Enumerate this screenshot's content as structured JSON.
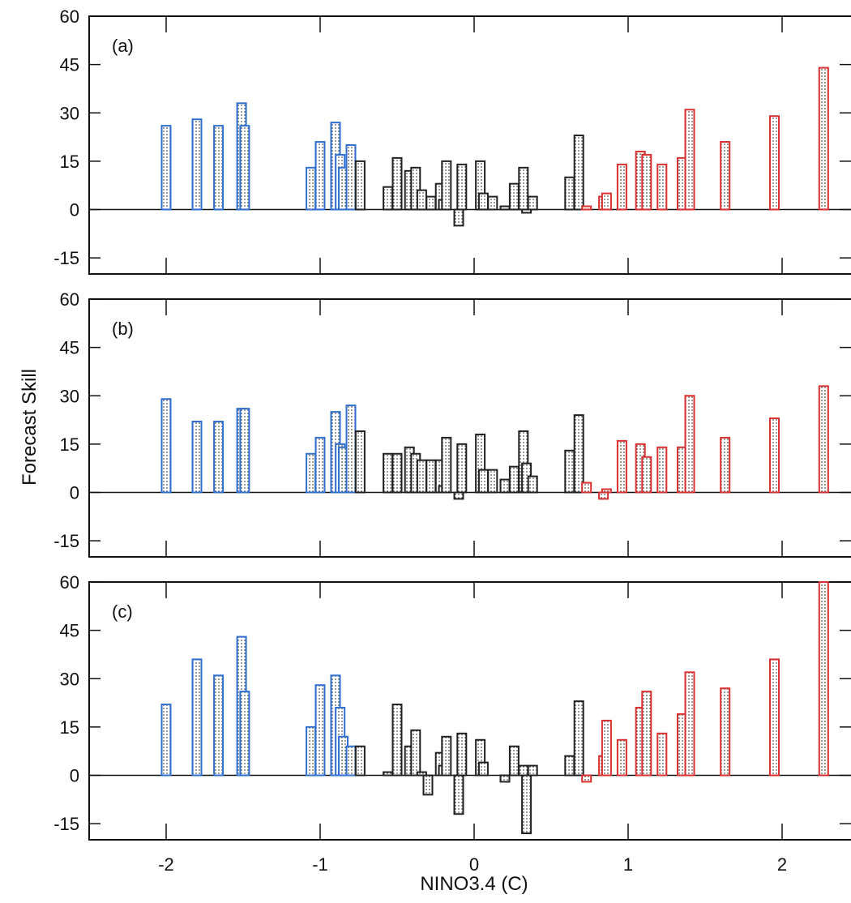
{
  "colors": {
    "la_nina": "#2f6fd0",
    "la_nina_fill": "#cfe0f6",
    "neutral": "#222222",
    "neutral_fill": "#d4d4d4",
    "el_nino": "#d93030",
    "el_nino_fill": "#f7d2d2"
  },
  "chart_data": {
    "type": "bar",
    "xlabel": "NINO3.4 (C)",
    "ylabel": "Forecast Skill",
    "xlim": [
      -2.5,
      2.3
    ],
    "ylim": [
      -20,
      60
    ],
    "xticks": [
      -2,
      -1,
      0,
      1,
      2
    ],
    "yticks": [
      -15,
      0,
      15,
      30,
      45,
      60
    ],
    "categories": [
      "la_nina",
      "neutral",
      "el_nino"
    ],
    "panels": [
      {
        "label": "(a)",
        "bars": [
          {
            "x": -2.0,
            "y": 26,
            "cat": "la_nina"
          },
          {
            "x": -1.8,
            "y": 28,
            "cat": "la_nina"
          },
          {
            "x": -1.66,
            "y": 26,
            "cat": "la_nina"
          },
          {
            "x": -1.51,
            "y": 33,
            "cat": "la_nina"
          },
          {
            "x": -1.49,
            "y": 26,
            "cat": "la_nina"
          },
          {
            "x": -1.06,
            "y": 13,
            "cat": "la_nina"
          },
          {
            "x": -1.0,
            "y": 21,
            "cat": "la_nina"
          },
          {
            "x": -0.9,
            "y": 27,
            "cat": "la_nina"
          },
          {
            "x": -0.87,
            "y": 17,
            "cat": "la_nina"
          },
          {
            "x": -0.85,
            "y": 13,
            "cat": "la_nina"
          },
          {
            "x": -0.8,
            "y": 20,
            "cat": "la_nina"
          },
          {
            "x": -0.74,
            "y": 15,
            "cat": "neutral"
          },
          {
            "x": -0.56,
            "y": 7,
            "cat": "neutral"
          },
          {
            "x": -0.5,
            "y": 16,
            "cat": "neutral"
          },
          {
            "x": -0.42,
            "y": 12,
            "cat": "neutral"
          },
          {
            "x": -0.38,
            "y": 13,
            "cat": "neutral"
          },
          {
            "x": -0.34,
            "y": 6,
            "cat": "neutral"
          },
          {
            "x": -0.28,
            "y": 4,
            "cat": "neutral"
          },
          {
            "x": -0.22,
            "y": 8,
            "cat": "neutral"
          },
          {
            "x": -0.2,
            "y": 3,
            "cat": "neutral"
          },
          {
            "x": -0.18,
            "y": 15,
            "cat": "neutral"
          },
          {
            "x": -0.1,
            "y": -5,
            "cat": "neutral"
          },
          {
            "x": -0.08,
            "y": 14,
            "cat": "neutral"
          },
          {
            "x": 0.04,
            "y": 15,
            "cat": "neutral"
          },
          {
            "x": 0.06,
            "y": 5,
            "cat": "neutral"
          },
          {
            "x": 0.12,
            "y": 4,
            "cat": "neutral"
          },
          {
            "x": 0.2,
            "y": 1,
            "cat": "neutral"
          },
          {
            "x": 0.26,
            "y": 8,
            "cat": "neutral"
          },
          {
            "x": 0.32,
            "y": 13,
            "cat": "neutral"
          },
          {
            "x": 0.34,
            "y": -1,
            "cat": "neutral"
          },
          {
            "x": 0.38,
            "y": 4,
            "cat": "neutral"
          },
          {
            "x": 0.62,
            "y": 10,
            "cat": "neutral"
          },
          {
            "x": 0.68,
            "y": 23,
            "cat": "neutral"
          },
          {
            "x": 0.73,
            "y": 1,
            "cat": "el_nino"
          },
          {
            "x": 0.84,
            "y": 4,
            "cat": "el_nino"
          },
          {
            "x": 0.86,
            "y": 5,
            "cat": "el_nino"
          },
          {
            "x": 0.96,
            "y": 14,
            "cat": "el_nino"
          },
          {
            "x": 1.08,
            "y": 18,
            "cat": "el_nino"
          },
          {
            "x": 1.12,
            "y": 17,
            "cat": "el_nino"
          },
          {
            "x": 1.22,
            "y": 14,
            "cat": "el_nino"
          },
          {
            "x": 1.35,
            "y": 16,
            "cat": "el_nino"
          },
          {
            "x": 1.4,
            "y": 31,
            "cat": "el_nino"
          },
          {
            "x": 1.63,
            "y": 21,
            "cat": "el_nino"
          },
          {
            "x": 1.95,
            "y": 29,
            "cat": "el_nino"
          },
          {
            "x": 2.27,
            "y": 44,
            "cat": "el_nino"
          }
        ]
      },
      {
        "label": "(b)",
        "bars": [
          {
            "x": -2.0,
            "y": 29,
            "cat": "la_nina"
          },
          {
            "x": -1.8,
            "y": 22,
            "cat": "la_nina"
          },
          {
            "x": -1.66,
            "y": 22,
            "cat": "la_nina"
          },
          {
            "x": -1.51,
            "y": 26,
            "cat": "la_nina"
          },
          {
            "x": -1.49,
            "y": 26,
            "cat": "la_nina"
          },
          {
            "x": -1.06,
            "y": 12,
            "cat": "la_nina"
          },
          {
            "x": -1.0,
            "y": 17,
            "cat": "la_nina"
          },
          {
            "x": -0.9,
            "y": 25,
            "cat": "la_nina"
          },
          {
            "x": -0.87,
            "y": 15,
            "cat": "la_nina"
          },
          {
            "x": -0.85,
            "y": 14,
            "cat": "la_nina"
          },
          {
            "x": -0.8,
            "y": 27,
            "cat": "la_nina"
          },
          {
            "x": -0.74,
            "y": 19,
            "cat": "neutral"
          },
          {
            "x": -0.56,
            "y": 12,
            "cat": "neutral"
          },
          {
            "x": -0.5,
            "y": 12,
            "cat": "neutral"
          },
          {
            "x": -0.42,
            "y": 14,
            "cat": "neutral"
          },
          {
            "x": -0.38,
            "y": 12,
            "cat": "neutral"
          },
          {
            "x": -0.34,
            "y": 10,
            "cat": "neutral"
          },
          {
            "x": -0.28,
            "y": 10,
            "cat": "neutral"
          },
          {
            "x": -0.22,
            "y": 10,
            "cat": "neutral"
          },
          {
            "x": -0.2,
            "y": 2,
            "cat": "neutral"
          },
          {
            "x": -0.18,
            "y": 17,
            "cat": "neutral"
          },
          {
            "x": -0.1,
            "y": -2,
            "cat": "neutral"
          },
          {
            "x": -0.08,
            "y": 15,
            "cat": "neutral"
          },
          {
            "x": 0.04,
            "y": 18,
            "cat": "neutral"
          },
          {
            "x": 0.06,
            "y": 7,
            "cat": "neutral"
          },
          {
            "x": 0.12,
            "y": 7,
            "cat": "neutral"
          },
          {
            "x": 0.2,
            "y": 4,
            "cat": "neutral"
          },
          {
            "x": 0.26,
            "y": 8,
            "cat": "neutral"
          },
          {
            "x": 0.32,
            "y": 19,
            "cat": "neutral"
          },
          {
            "x": 0.34,
            "y": 9,
            "cat": "neutral"
          },
          {
            "x": 0.38,
            "y": 5,
            "cat": "neutral"
          },
          {
            "x": 0.62,
            "y": 13,
            "cat": "neutral"
          },
          {
            "x": 0.68,
            "y": 24,
            "cat": "neutral"
          },
          {
            "x": 0.73,
            "y": 3,
            "cat": "el_nino"
          },
          {
            "x": 0.84,
            "y": -2,
            "cat": "el_nino"
          },
          {
            "x": 0.86,
            "y": 1,
            "cat": "el_nino"
          },
          {
            "x": 0.96,
            "y": 16,
            "cat": "el_nino"
          },
          {
            "x": 1.08,
            "y": 15,
            "cat": "el_nino"
          },
          {
            "x": 1.12,
            "y": 11,
            "cat": "el_nino"
          },
          {
            "x": 1.22,
            "y": 14,
            "cat": "el_nino"
          },
          {
            "x": 1.35,
            "y": 14,
            "cat": "el_nino"
          },
          {
            "x": 1.4,
            "y": 30,
            "cat": "el_nino"
          },
          {
            "x": 1.63,
            "y": 17,
            "cat": "el_nino"
          },
          {
            "x": 1.95,
            "y": 23,
            "cat": "el_nino"
          },
          {
            "x": 2.27,
            "y": 33,
            "cat": "el_nino"
          }
        ]
      },
      {
        "label": "(c)",
        "bars": [
          {
            "x": -2.0,
            "y": 22,
            "cat": "la_nina"
          },
          {
            "x": -1.8,
            "y": 36,
            "cat": "la_nina"
          },
          {
            "x": -1.66,
            "y": 31,
            "cat": "la_nina"
          },
          {
            "x": -1.51,
            "y": 43,
            "cat": "la_nina"
          },
          {
            "x": -1.49,
            "y": 26,
            "cat": "la_nina"
          },
          {
            "x": -1.06,
            "y": 15,
            "cat": "la_nina"
          },
          {
            "x": -1.0,
            "y": 28,
            "cat": "la_nina"
          },
          {
            "x": -0.9,
            "y": 31,
            "cat": "la_nina"
          },
          {
            "x": -0.87,
            "y": 21,
            "cat": "la_nina"
          },
          {
            "x": -0.85,
            "y": 12,
            "cat": "la_nina"
          },
          {
            "x": -0.8,
            "y": 9,
            "cat": "la_nina"
          },
          {
            "x": -0.74,
            "y": 9,
            "cat": "neutral"
          },
          {
            "x": -0.56,
            "y": 1,
            "cat": "neutral"
          },
          {
            "x": -0.5,
            "y": 22,
            "cat": "neutral"
          },
          {
            "x": -0.42,
            "y": 9,
            "cat": "neutral"
          },
          {
            "x": -0.38,
            "y": 14,
            "cat": "neutral"
          },
          {
            "x": -0.34,
            "y": 1,
            "cat": "neutral"
          },
          {
            "x": -0.3,
            "y": -6,
            "cat": "neutral"
          },
          {
            "x": -0.22,
            "y": 7,
            "cat": "neutral"
          },
          {
            "x": -0.2,
            "y": 3,
            "cat": "neutral"
          },
          {
            "x": -0.18,
            "y": 12,
            "cat": "neutral"
          },
          {
            "x": -0.1,
            "y": -12,
            "cat": "neutral"
          },
          {
            "x": -0.08,
            "y": 13,
            "cat": "neutral"
          },
          {
            "x": 0.04,
            "y": 11,
            "cat": "neutral"
          },
          {
            "x": 0.06,
            "y": 4,
            "cat": "neutral"
          },
          {
            "x": 0.2,
            "y": -2,
            "cat": "neutral"
          },
          {
            "x": 0.26,
            "y": 9,
            "cat": "neutral"
          },
          {
            "x": 0.32,
            "y": 3,
            "cat": "neutral"
          },
          {
            "x": 0.34,
            "y": -18,
            "cat": "neutral"
          },
          {
            "x": 0.38,
            "y": 3,
            "cat": "neutral"
          },
          {
            "x": 0.62,
            "y": 6,
            "cat": "neutral"
          },
          {
            "x": 0.68,
            "y": 23,
            "cat": "neutral"
          },
          {
            "x": 0.73,
            "y": -2,
            "cat": "el_nino"
          },
          {
            "x": 0.84,
            "y": 6,
            "cat": "el_nino"
          },
          {
            "x": 0.86,
            "y": 17,
            "cat": "el_nino"
          },
          {
            "x": 0.96,
            "y": 11,
            "cat": "el_nino"
          },
          {
            "x": 1.08,
            "y": 21,
            "cat": "el_nino"
          },
          {
            "x": 1.12,
            "y": 26,
            "cat": "el_nino"
          },
          {
            "x": 1.22,
            "y": 13,
            "cat": "el_nino"
          },
          {
            "x": 1.35,
            "y": 19,
            "cat": "el_nino"
          },
          {
            "x": 1.4,
            "y": 32,
            "cat": "el_nino"
          },
          {
            "x": 1.63,
            "y": 27,
            "cat": "el_nino"
          },
          {
            "x": 1.95,
            "y": 36,
            "cat": "el_nino"
          },
          {
            "x": 2.27,
            "y": 60,
            "cat": "el_nino"
          }
        ]
      }
    ]
  }
}
